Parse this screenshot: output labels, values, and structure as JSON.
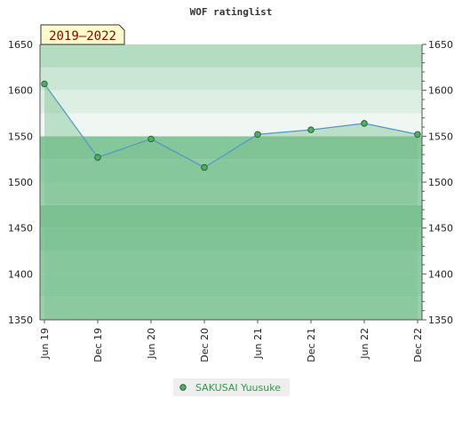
{
  "chart_data": {
    "type": "line",
    "title": "WOF ratinglist",
    "period_label": "2019–2022",
    "xlabel": "",
    "ylabel": "",
    "ylim": [
      1350,
      1650
    ],
    "y_ticks": [
      1350,
      1400,
      1450,
      1500,
      1550,
      1600,
      1650
    ],
    "categories": [
      "Jun 19",
      "Dec 19",
      "Jun 20",
      "Dec 20",
      "Jun 21",
      "Dec 21",
      "Jun 22",
      "Dec 22"
    ],
    "series": [
      {
        "name": "SAKUSAI Yuusuke",
        "values": [
          1607,
          1527,
          1547,
          1516,
          1552,
          1557,
          1564,
          1552
        ]
      }
    ],
    "legend_position": "bottom",
    "grid": false,
    "bands": [
      {
        "from": 1350,
        "to": 1375,
        "color": "#99d0aa"
      },
      {
        "from": 1375,
        "to": 1400,
        "color": "#8ecca2"
      },
      {
        "from": 1400,
        "to": 1425,
        "color": "#8ecca2"
      },
      {
        "from": 1425,
        "to": 1450,
        "color": "#84c79a"
      },
      {
        "from": 1450,
        "to": 1475,
        "color": "#7cc292"
      },
      {
        "from": 1475,
        "to": 1500,
        "color": "#99d0aa"
      },
      {
        "from": 1500,
        "to": 1525,
        "color": "#8ecca2"
      },
      {
        "from": 1525,
        "to": 1550,
        "color": "#84c79a"
      },
      {
        "from": 1550,
        "to": 1575,
        "color": "#f0f7f2"
      },
      {
        "from": 1575,
        "to": 1600,
        "color": "#ddeee2"
      },
      {
        "from": 1600,
        "to": 1625,
        "color": "#cbe6d4"
      },
      {
        "from": 1625,
        "to": 1650,
        "color": "#b3dcc0"
      }
    ],
    "colors": {
      "line": "#4f97c8",
      "marker_fill": "#4caf62",
      "marker_stroke": "#1f4f2a",
      "fill_below": "#7cc292",
      "legend_bg": "#eeeeee",
      "badge_bg": "#ffffcc"
    }
  }
}
